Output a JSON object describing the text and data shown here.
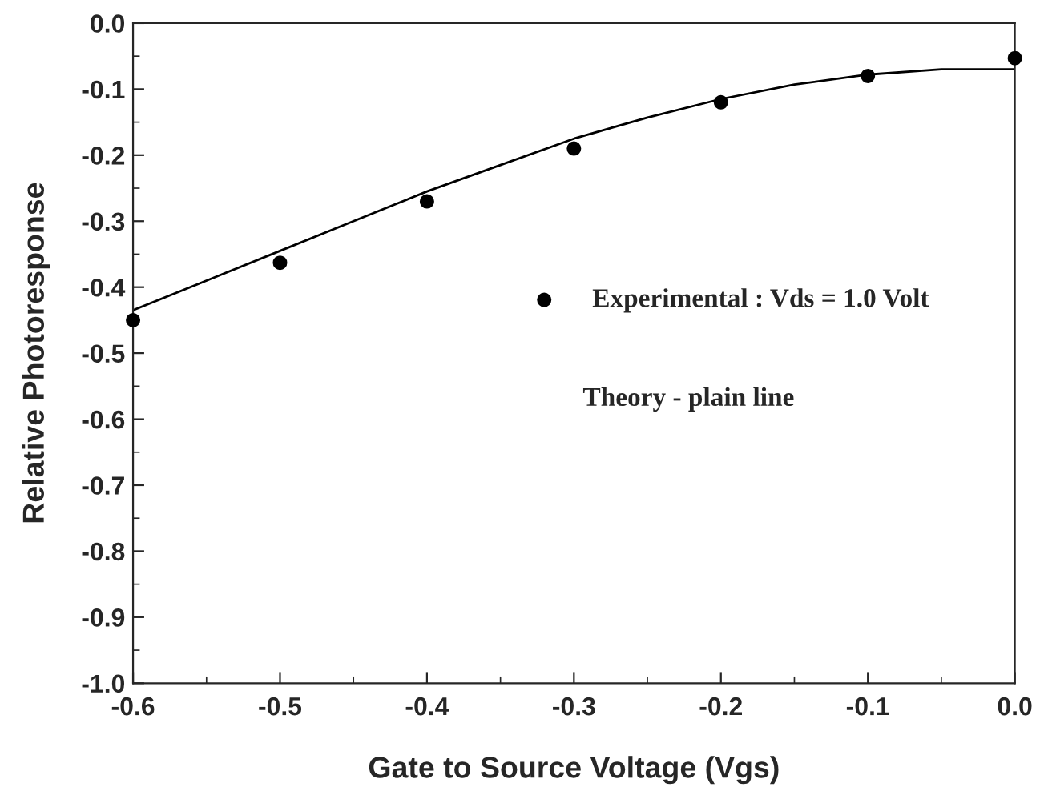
{
  "chart_data": {
    "type": "scatter",
    "xlabel": "Gate to Source Voltage (Vgs)",
    "ylabel": "Relative Photoresponse",
    "series": [
      {
        "name": "Experimental : Vds = 1.0 Volt",
        "color": "#000000",
        "marker": "circle",
        "x": [
          -0.6,
          -0.5,
          -0.4,
          -0.3,
          -0.2,
          -0.1,
          0.0
        ],
        "values": [
          -0.45,
          -0.363,
          -0.27,
          -0.19,
          -0.12,
          -0.08,
          -0.053
        ]
      },
      {
        "type": "line",
        "color": "#000000",
        "line_style": "solid",
        "x": [
          -0.6,
          -0.55,
          -0.5,
          -0.45,
          -0.4,
          -0.35,
          -0.3,
          -0.25,
          -0.2,
          -0.15,
          -0.1,
          -0.05,
          0.0
        ],
        "values": [
          -0.435,
          -0.39,
          -0.345,
          -0.3,
          -0.255,
          -0.215,
          -0.175,
          -0.143,
          -0.115,
          -0.093,
          -0.078,
          -0.07,
          -0.07
        ]
      }
    ],
    "annotations": [
      "Theory - plain line"
    ],
    "legend": "center right",
    "xlim": [
      -0.6,
      0.0
    ],
    "ylim": [
      -1.0,
      0.0
    ],
    "xticks": [
      {
        "value": -0.6,
        "label": "-0.6"
      },
      {
        "value": -0.5,
        "label": "-0.5"
      },
      {
        "value": -0.4,
        "label": "-0.4"
      },
      {
        "value": -0.3,
        "label": "-0.3"
      },
      {
        "value": -0.2,
        "label": "-0.2"
      },
      {
        "value": -0.1,
        "label": "-0.1"
      },
      {
        "value": 0.0,
        "label": "0.0"
      }
    ],
    "yticks": [
      {
        "value": -1.0,
        "label": "-1.0"
      },
      {
        "value": -0.9,
        "label": "-0.9"
      },
      {
        "value": -0.8,
        "label": "-0.8"
      },
      {
        "value": -0.7,
        "label": "-0.7"
      },
      {
        "value": -0.6,
        "label": "-0.6"
      },
      {
        "value": -0.5,
        "label": "-0.5"
      },
      {
        "value": -0.4,
        "label": "-0.4"
      },
      {
        "value": -0.3,
        "label": "-0.3"
      },
      {
        "value": -0.2,
        "label": "-0.2"
      },
      {
        "value": -0.1,
        "label": "-0.1"
      },
      {
        "value": 0.0,
        "label": "0.0"
      }
    ],
    "grid": false
  }
}
